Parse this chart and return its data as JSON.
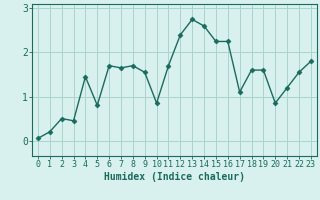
{
  "title": "",
  "xlabel": "Humidex (Indice chaleur)",
  "x": [
    0,
    1,
    2,
    3,
    4,
    5,
    6,
    7,
    8,
    9,
    10,
    11,
    12,
    13,
    14,
    15,
    16,
    17,
    18,
    19,
    20,
    21,
    22,
    23
  ],
  "y": [
    0.05,
    0.2,
    0.5,
    0.45,
    1.45,
    0.8,
    1.7,
    1.65,
    1.7,
    1.55,
    0.85,
    1.7,
    2.4,
    2.75,
    2.6,
    2.25,
    2.25,
    1.1,
    1.6,
    1.6,
    0.85,
    1.2,
    1.55,
    1.8
  ],
  "line_color": "#1a6b5e",
  "marker": "D",
  "marker_size": 2.5,
  "bg_color": "#d8f0ee",
  "grid_color": "#aad4cc",
  "axis_color": "#1a6b5e",
  "tick_label_color": "#1a6b5e",
  "xlabel_color": "#1a6b5e",
  "ylim": [
    -0.35,
    3.1
  ],
  "xlim": [
    -0.5,
    23.5
  ],
  "yticks": [
    0,
    1,
    2,
    3
  ],
  "xticks": [
    0,
    1,
    2,
    3,
    4,
    5,
    6,
    7,
    8,
    9,
    10,
    11,
    12,
    13,
    14,
    15,
    16,
    17,
    18,
    19,
    20,
    21,
    22,
    23
  ],
  "tick_fontsize": 6,
  "xlabel_fontsize": 7,
  "linewidth": 1.0
}
